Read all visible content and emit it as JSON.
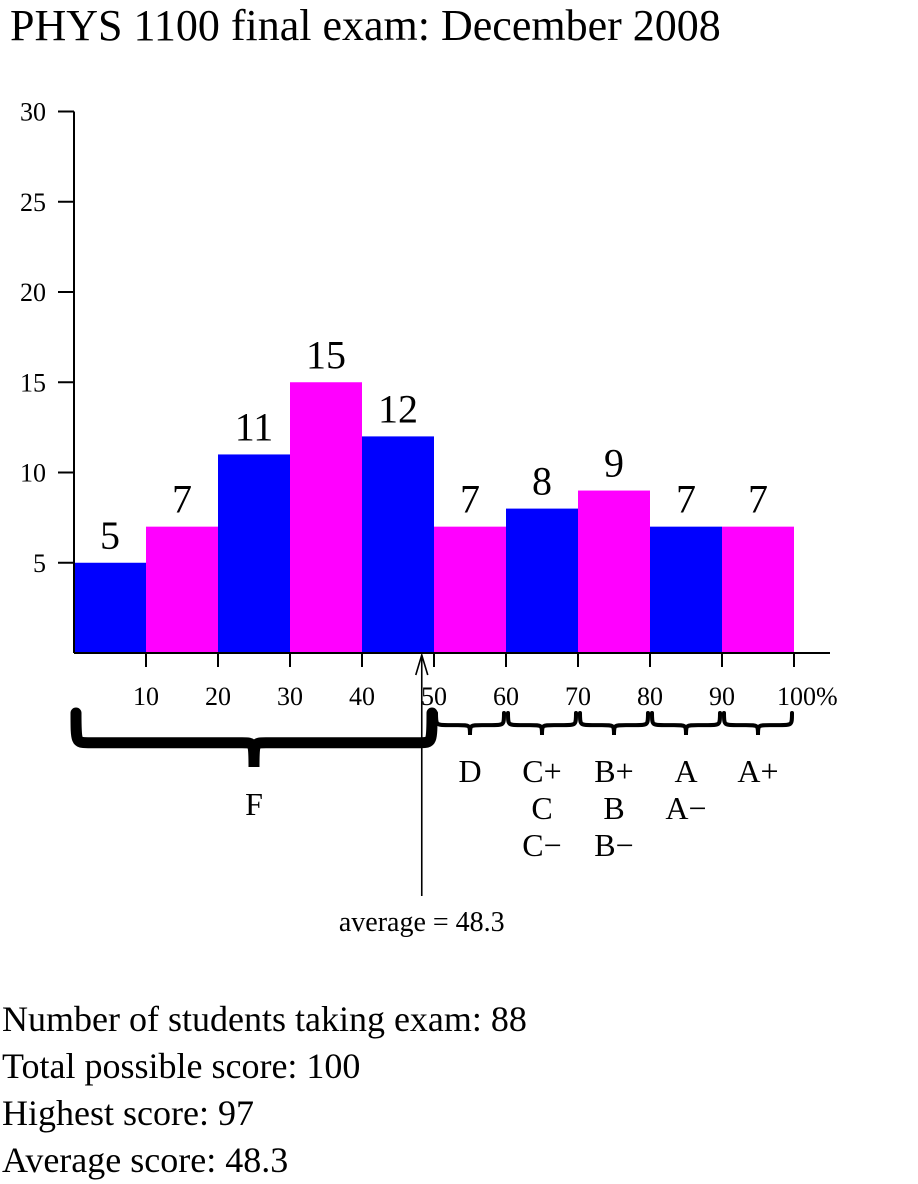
{
  "chart_data": {
    "type": "bar",
    "title": "PHYS 1100 final exam: December 2008",
    "bins": [
      {
        "from": 0,
        "to": 10,
        "count": 5
      },
      {
        "from": 10,
        "to": 20,
        "count": 7
      },
      {
        "from": 20,
        "to": 30,
        "count": 11
      },
      {
        "from": 30,
        "to": 40,
        "count": 15
      },
      {
        "from": 40,
        "to": 50,
        "count": 12
      },
      {
        "from": 50,
        "to": 60,
        "count": 7
      },
      {
        "from": 60,
        "to": 70,
        "count": 8
      },
      {
        "from": 70,
        "to": 80,
        "count": 9
      },
      {
        "from": 80,
        "to": 90,
        "count": 7
      },
      {
        "from": 90,
        "to": 100,
        "count": 7
      }
    ],
    "bar_colors": [
      "#0000ff",
      "#ff00ff"
    ],
    "xlim": [
      0,
      105
    ],
    "ylim": [
      0,
      30
    ],
    "yticks": [
      5,
      10,
      15,
      20,
      25,
      30
    ],
    "xticks": [
      {
        "value": 10,
        "label": "10"
      },
      {
        "value": 20,
        "label": "20"
      },
      {
        "value": 30,
        "label": "30"
      },
      {
        "value": 40,
        "label": "40"
      },
      {
        "value": 50,
        "label": "50"
      },
      {
        "value": 60,
        "label": "60"
      },
      {
        "value": 70,
        "label": "70"
      },
      {
        "value": 80,
        "label": "80"
      },
      {
        "value": 90,
        "label": "90"
      },
      {
        "value": 100,
        "label": "100%"
      }
    ],
    "grades": [
      {
        "from": 0,
        "to": 50,
        "labels": [
          "F"
        ]
      },
      {
        "from": 50,
        "to": 60,
        "labels": [
          "D"
        ]
      },
      {
        "from": 60,
        "to": 70,
        "labels": [
          "C+",
          "C",
          "C−"
        ]
      },
      {
        "from": 70,
        "to": 80,
        "labels": [
          "B+",
          "B",
          "B−"
        ]
      },
      {
        "from": 80,
        "to": 90,
        "labels": [
          "A",
          "A−"
        ]
      },
      {
        "from": 90,
        "to": 100,
        "labels": [
          "A+"
        ]
      }
    ],
    "average": {
      "value": 48.3,
      "label": "average = 48.3"
    }
  },
  "stats": {
    "students": "Number of students taking exam: 88",
    "total": "Total possible score: 100",
    "highest": "Highest score: 97",
    "average": "Average score: 48.3"
  }
}
